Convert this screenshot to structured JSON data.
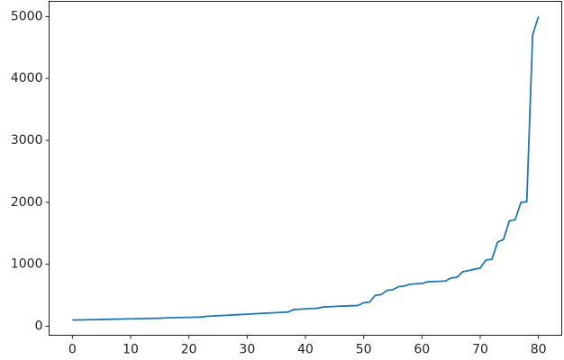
{
  "chart_data": {
    "type": "line",
    "x": [
      0,
      1,
      2,
      3,
      4,
      5,
      6,
      7,
      8,
      9,
      10,
      11,
      12,
      13,
      14,
      15,
      16,
      17,
      18,
      19,
      20,
      21,
      22,
      23,
      24,
      25,
      26,
      27,
      28,
      29,
      30,
      31,
      32,
      33,
      34,
      35,
      36,
      37,
      38,
      39,
      40,
      41,
      42,
      43,
      44,
      45,
      46,
      47,
      48,
      49,
      50,
      51,
      52,
      53,
      54,
      55,
      56,
      57,
      58,
      59,
      60,
      61,
      62,
      63,
      64,
      65,
      66,
      67,
      68,
      69,
      70,
      71,
      72,
      73,
      74,
      75,
      76,
      77,
      78,
      79,
      80
    ],
    "series": [
      {
        "color": "#1f77b4",
        "values": [
          100,
          102,
          104,
          106,
          108,
          110,
          112,
          114,
          116,
          118,
          120,
          122,
          124,
          126,
          128,
          130,
          135,
          138,
          140,
          142,
          144,
          146,
          148,
          160,
          165,
          170,
          175,
          180,
          185,
          190,
          195,
          200,
          205,
          210,
          215,
          220,
          225,
          230,
          270,
          275,
          280,
          285,
          290,
          310,
          315,
          320,
          325,
          328,
          332,
          335,
          380,
          390,
          500,
          510,
          580,
          590,
          640,
          650,
          680,
          685,
          690,
          720,
          722,
          725,
          730,
          780,
          790,
          880,
          900,
          920,
          940,
          1070,
          1080,
          1360,
          1400,
          1700,
          1720,
          2000,
          2010,
          4700,
          5000
        ]
      }
    ],
    "xlim": [
      -4,
      84
    ],
    "ylim": [
      -145,
      5245
    ],
    "xticks": [
      0,
      10,
      20,
      30,
      40,
      50,
      60,
      70,
      80
    ],
    "yticks": [
      0,
      1000,
      2000,
      3000,
      4000,
      5000
    ]
  }
}
